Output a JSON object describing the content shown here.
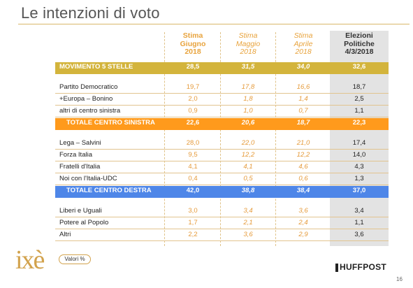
{
  "title": "Le intenzioni di voto",
  "headers": [
    {
      "lines": [
        "Stima",
        "Giugno",
        "2018"
      ],
      "style": "bold"
    },
    {
      "lines": [
        "Stima",
        "Maggio",
        "2018"
      ],
      "style": "italic"
    },
    {
      "lines": [
        "Stima",
        "Aprile",
        "2018"
      ],
      "style": "italic"
    },
    {
      "lines": [
        "Elezioni",
        "Politiche",
        "4/3/2018"
      ],
      "style": "final"
    }
  ],
  "chart_data": {
    "type": "table",
    "columns": [
      "Stima Giugno 2018",
      "Stima Maggio 2018",
      "Stima Aprile 2018",
      "Elezioni Politiche 4/3/2018"
    ],
    "rows": [
      {
        "label": "MOVIMENTO 5 STELLE",
        "kind": "m5s",
        "values": [
          "28,5",
          "31,5",
          "34,0",
          "32,6"
        ]
      },
      {
        "label": "Partito Democratico",
        "kind": "plain",
        "values": [
          "19,7",
          "17,8",
          "16,6",
          "18,7"
        ]
      },
      {
        "label": "+Europa – Bonino",
        "kind": "plain",
        "values": [
          "2,0",
          "1,8",
          "1,4",
          "2,5"
        ]
      },
      {
        "label": "altri di centro sinistra",
        "kind": "plain",
        "values": [
          "0,9",
          "1,0",
          "0,7",
          "1,1"
        ]
      },
      {
        "label": "TOTALE CENTRO SINISTRA",
        "kind": "csin",
        "values": [
          "22,6",
          "20,6",
          "18,7",
          "22,3"
        ]
      },
      {
        "label": "Lega – Salvini",
        "kind": "plain",
        "values": [
          "28,0",
          "22,0",
          "21,0",
          "17,4"
        ]
      },
      {
        "label": "Forza Italia",
        "kind": "plain",
        "values": [
          "9,5",
          "12,2",
          "12,2",
          "14,0"
        ]
      },
      {
        "label": "Fratelli d'Italia",
        "kind": "plain",
        "values": [
          "4,1",
          "4,1",
          "4,6",
          "4,3"
        ]
      },
      {
        "label": "Noi con l'Italia-UDC",
        "kind": "plain",
        "values": [
          "0,4",
          "0,5",
          "0,6",
          "1,3"
        ]
      },
      {
        "label": "TOTALE CENTRO DESTRA",
        "kind": "cdes",
        "values": [
          "42,0",
          "38,8",
          "38,4",
          "37,0"
        ]
      },
      {
        "label": "Liberi e Uguali",
        "kind": "plain",
        "values": [
          "3,0",
          "3,4",
          "3,6",
          "3,4"
        ]
      },
      {
        "label": "Potere al Popolo",
        "kind": "plain",
        "values": [
          "1,7",
          "2,1",
          "2,4",
          "1,1"
        ]
      },
      {
        "label": "Altri",
        "kind": "plain",
        "values": [
          "2,2",
          "3,6",
          "2,9",
          "3,6"
        ]
      }
    ]
  },
  "footer": {
    "logo": "ixè",
    "unit_pill": "Valori %",
    "brand": "HUFFPOST",
    "page": "16"
  },
  "colors": {
    "m5s": "#d3b43c",
    "centro_sinistra": "#ff9a1c",
    "centro_destra": "#4e86e8",
    "estimate_text": "#e59a3a",
    "elections_column": "#e3e3e3"
  }
}
